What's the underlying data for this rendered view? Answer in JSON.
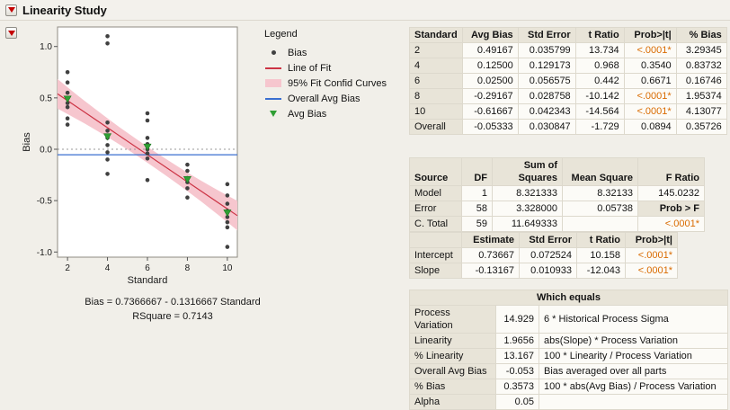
{
  "window": {
    "title": "Linearity Study"
  },
  "colors": {
    "significant": "#d96b00",
    "fit_line": "#cc3344",
    "confid_band": "#f6c6ce",
    "overall_avg_line": "#3a6fd0",
    "avg_bias_marker": "#2f9e33",
    "bias_point": "#404040",
    "header_bg": "#e8e4d8"
  },
  "chart": {
    "caption_line1": "Bias = 0.7366667 - 0.1316667 Standard",
    "caption_line2": "RSquare = 0.7143"
  },
  "legend": {
    "title": "Legend",
    "items": [
      {
        "label": "Bias",
        "type": "dot",
        "color": "#404040",
        "icon": "bias-marker-icon"
      },
      {
        "label": "Line of Fit",
        "type": "line",
        "color": "#cc3344",
        "icon": "line-of-fit-icon"
      },
      {
        "label": "95% Fit Confid Curves",
        "type": "band",
        "color": "#f6c6ce",
        "icon": "confid-curves-icon"
      },
      {
        "label": "Overall Avg Bias",
        "type": "line",
        "color": "#3a6fd0",
        "icon": "overall-avg-bias-icon"
      },
      {
        "label": "Avg Bias",
        "type": "triangle",
        "color": "#2f9e33",
        "icon": "avg-bias-marker-icon"
      }
    ]
  },
  "chart_data": {
    "type": "scatter",
    "xlabel": "Standard",
    "ylabel": "Bias",
    "xlim": [
      1.5,
      10.5
    ],
    "ylim": [
      -1.05,
      1.19
    ],
    "xticks": [
      2,
      4,
      6,
      8,
      10
    ],
    "yticks": [
      -1.0,
      -0.5,
      0.0,
      0.5,
      1.0
    ],
    "fit": {
      "intercept": 0.7366667,
      "slope": -0.1316667
    },
    "rsquare": 0.7143,
    "overall_avg_bias": -0.05333,
    "zero_reference_line": 0,
    "conf_band": {
      "center_x": 6,
      "center_halfwidth": 0.078,
      "curvature": 0.00325
    },
    "avg_bias": {
      "x": [
        2,
        4,
        6,
        8,
        10
      ],
      "y": [
        0.49167,
        0.125,
        0.025,
        -0.29167,
        -0.61667
      ]
    },
    "points": [
      {
        "x": 2,
        "y": [
          0.75,
          0.65,
          0.55,
          0.5,
          0.45,
          0.41,
          0.3,
          0.24
        ]
      },
      {
        "x": 4,
        "y": [
          1.1,
          1.03,
          0.26,
          0.18,
          0.11,
          0.04,
          -0.03,
          -0.1,
          -0.24
        ]
      },
      {
        "x": 6,
        "y": [
          0.35,
          0.28,
          0.11,
          0.05,
          0.0,
          -0.04,
          -0.09,
          -0.3
        ]
      },
      {
        "x": 8,
        "y": [
          -0.15,
          -0.21,
          -0.28,
          -0.32,
          -0.38,
          -0.47
        ]
      },
      {
        "x": 10,
        "y": [
          -0.34,
          -0.45,
          -0.53,
          -0.6,
          -0.66,
          -0.71,
          -0.76,
          -0.95
        ]
      }
    ]
  },
  "tables": {
    "standard": {
      "headers": [
        "Standard",
        "Avg Bias",
        "Std Error",
        "t Ratio",
        "Prob>|t|",
        "% Bias"
      ],
      "rows": [
        [
          "2",
          "0.49167",
          "0.035799",
          "13.734",
          "<.0001*",
          "3.29345"
        ],
        [
          "4",
          "0.12500",
          "0.129173",
          "0.968",
          "0.3540",
          "0.83732"
        ],
        [
          "6",
          "0.02500",
          "0.056575",
          "0.442",
          "0.6671",
          "0.16746"
        ],
        [
          "8",
          "-0.29167",
          "0.028758",
          "-10.142",
          "<.0001*",
          "1.95374"
        ],
        [
          "10",
          "-0.61667",
          "0.042343",
          "-14.564",
          "<.0001*",
          "4.13077"
        ],
        [
          "Overall",
          "-0.05333",
          "0.030847",
          "-1.729",
          "0.0894",
          "0.35726"
        ]
      ]
    },
    "anova": {
      "headers": [
        "Source",
        "DF",
        "Sum of\nSquares",
        "Mean Square",
        "F Ratio"
      ],
      "subheader_cell": "Prob > F",
      "rows": [
        [
          "Model",
          "1",
          "8.321333",
          "8.32133",
          "145.0232"
        ],
        [
          "Error",
          "58",
          "3.328000",
          "0.05738",
          "Prob > F"
        ],
        [
          "C. Total",
          "59",
          "11.649333",
          "",
          "<.0001*"
        ]
      ]
    },
    "estimates": {
      "headers": [
        "",
        "Estimate",
        "Std Error",
        "t Ratio",
        "Prob>|t|"
      ],
      "rows": [
        [
          "Intercept",
          "0.73667",
          "0.072524",
          "10.158",
          "<.0001*"
        ],
        [
          "Slope",
          "-0.13167",
          "0.010933",
          "-12.043",
          "<.0001*"
        ]
      ]
    },
    "metrics": {
      "header": "Which equals",
      "rows": [
        [
          "Process Variation",
          "14.929",
          "6 * Historical Process Sigma"
        ],
        [
          "Linearity",
          "1.9656",
          "abs(Slope) * Process Variation"
        ],
        [
          "% Linearity",
          "13.167",
          "100 * Linearity / Process Variation"
        ],
        [
          "Overall Avg Bias",
          "-0.053",
          "Bias averaged over all parts"
        ],
        [
          "% Bias",
          "0.3573",
          "100 * abs(Avg Bias) / Process Variation"
        ],
        [
          "Alpha",
          "0.05",
          ""
        ]
      ]
    }
  }
}
